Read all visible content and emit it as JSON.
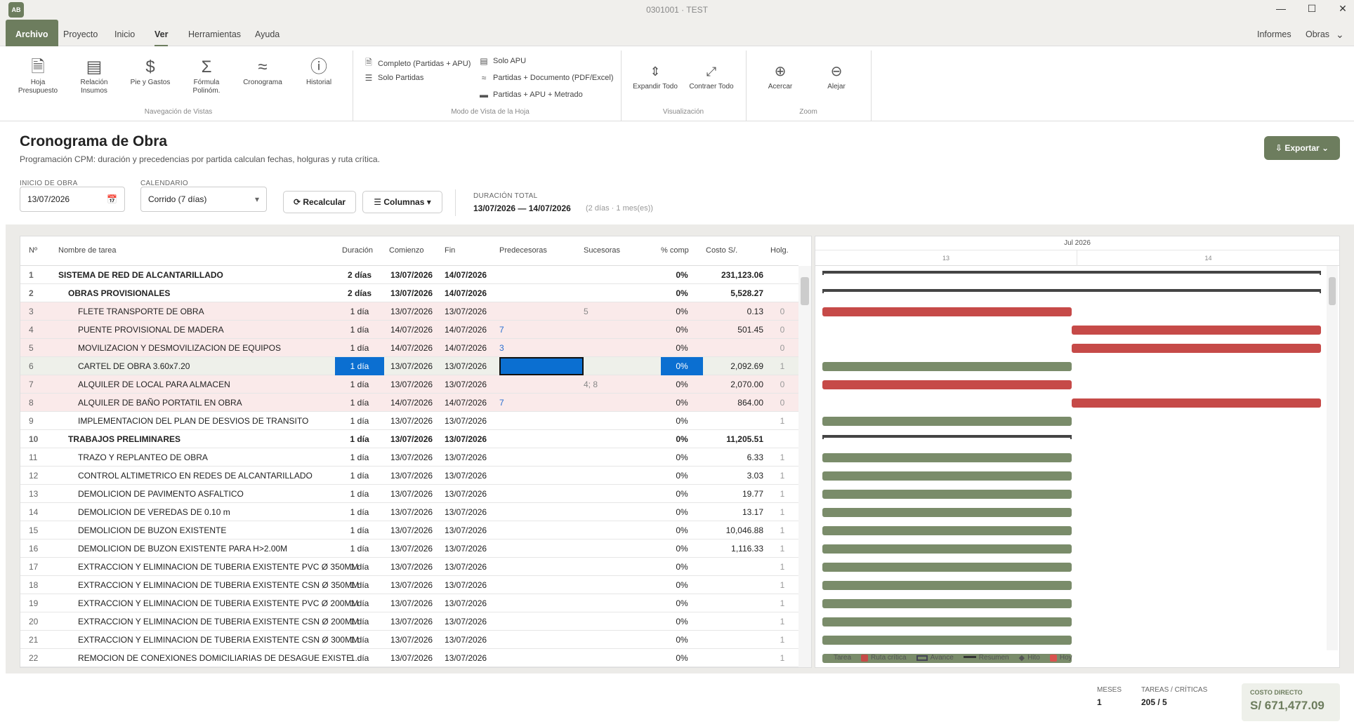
{
  "window": {
    "logo": "AB",
    "title": "0301001 · TEST"
  },
  "menu": {
    "file": "Archivo",
    "items": [
      "Proyecto",
      "Inicio",
      "Ver",
      "Herramientas",
      "Ayuda"
    ],
    "right": [
      "Informes",
      "Obras"
    ]
  },
  "ribbon": {
    "nav": [
      {
        "label": "Hoja Presupuesto",
        "icon": "document-icon"
      },
      {
        "label": "Relación Insumos",
        "icon": "list-doc-icon"
      },
      {
        "label": "Pie y Gastos",
        "icon": "dollar-icon"
      },
      {
        "label": "Fórmula Polinóm.",
        "icon": "sigma-icon"
      },
      {
        "label": "Cronograma",
        "icon": "chart-line-icon"
      },
      {
        "label": "Historial",
        "icon": "info-icon"
      }
    ],
    "nav_group": "Navegación de Vistas",
    "view_modes": [
      "Completo (Partidas + APU)",
      "Solo Partidas",
      "Solo APU",
      "Partidas + Documento (PDF/Excel)",
      "Partidas + APU + Metrado"
    ],
    "view_group": "Modo de Vista de la Hoja",
    "visual": [
      "Expandir Todo",
      "Contraer Todo"
    ],
    "visual_group": "Visualización",
    "zoom": [
      "Acercar",
      "Alejar"
    ],
    "zoom_group": "Zoom"
  },
  "page": {
    "title": "Cronograma de Obra",
    "subtitle": "Programación CPM: duración y precedencias por partida calculan fechas, holguras y ruta crítica.",
    "export": "Exportar",
    "start_label": "INICIO DE OBRA",
    "start_value": "13/07/2026",
    "calendar_label": "CALENDARIO",
    "calendar_value": "Corrido (7 días)",
    "recalc": "Recalcular",
    "columns": "Columnas",
    "duration_label": "DURACIÓN TOTAL",
    "duration_range": "13/07/2026 — 14/07/2026",
    "duration_note": "(2 días · 1 mes(es))"
  },
  "table": {
    "headers": [
      "Nº",
      "Nombre de tarea",
      "Duración",
      "Comienzo",
      "Fin",
      "Predecesoras",
      "Sucesoras",
      "% comp",
      "Costo S/.",
      "Holg."
    ],
    "rows": [
      {
        "n": "1",
        "name": "SISTEMA DE RED DE ALCANTARILLADO",
        "dur": "2 días",
        "start": "13/07/2026",
        "end": "14/07/2026",
        "pred": "",
        "succ": "",
        "pct": "0%",
        "cost": "231,123.06",
        "holg": "",
        "type": "summary",
        "level": 0
      },
      {
        "n": "2",
        "name": "OBRAS PROVISIONALES",
        "dur": "2 días",
        "start": "13/07/2026",
        "end": "14/07/2026",
        "pred": "",
        "succ": "",
        "pct": "0%",
        "cost": "5,528.27",
        "holg": "",
        "type": "summary",
        "level": 1
      },
      {
        "n": "3",
        "name": "FLETE TRANSPORTE DE OBRA",
        "dur": "1 día",
        "start": "13/07/2026",
        "end": "13/07/2026",
        "pred": "",
        "succ": "5",
        "pct": "0%",
        "cost": "0.13",
        "holg": "0",
        "type": "critical",
        "level": 2
      },
      {
        "n": "4",
        "name": "PUENTE PROVISIONAL DE MADERA",
        "dur": "1 día",
        "start": "14/07/2026",
        "end": "14/07/2026",
        "pred": "7",
        "succ": "",
        "pct": "0%",
        "cost": "501.45",
        "holg": "0",
        "type": "critical",
        "level": 2
      },
      {
        "n": "5",
        "name": "MOVILIZACION Y DESMOVILIZACION DE EQUIPOS",
        "dur": "1 día",
        "start": "14/07/2026",
        "end": "14/07/2026",
        "pred": "3",
        "succ": "",
        "pct": "0%",
        "cost": "",
        "holg": "0",
        "type": "critical",
        "level": 2
      },
      {
        "n": "6",
        "name": "CARTEL DE OBRA 3.60x7.20",
        "dur": "1 día",
        "start": "13/07/2026",
        "end": "13/07/2026",
        "pred": "",
        "succ": "",
        "pct": "0%",
        "cost": "2,092.69",
        "holg": "1",
        "type": "selected",
        "level": 2
      },
      {
        "n": "7",
        "name": "ALQUILER DE LOCAL PARA ALMACEN",
        "dur": "1 día",
        "start": "13/07/2026",
        "end": "13/07/2026",
        "pred": "",
        "succ": "4; 8",
        "pct": "0%",
        "cost": "2,070.00",
        "holg": "0",
        "type": "critical",
        "level": 2
      },
      {
        "n": "8",
        "name": "ALQUILER DE BAÑO PORTATIL EN OBRA",
        "dur": "1 día",
        "start": "14/07/2026",
        "end": "14/07/2026",
        "pred": "7",
        "succ": "",
        "pct": "0%",
        "cost": "864.00",
        "holg": "0",
        "type": "critical",
        "level": 2
      },
      {
        "n": "9",
        "name": "IMPLEMENTACION DEL PLAN DE DESVIOS DE TRANSITO",
        "dur": "1 día",
        "start": "13/07/2026",
        "end": "13/07/2026",
        "pred": "",
        "succ": "",
        "pct": "0%",
        "cost": "",
        "holg": "1",
        "type": "task",
        "level": 2
      },
      {
        "n": "10",
        "name": "TRABAJOS PRELIMINARES",
        "dur": "1 día",
        "start": "13/07/2026",
        "end": "13/07/2026",
        "pred": "",
        "succ": "",
        "pct": "0%",
        "cost": "11,205.51",
        "holg": "",
        "type": "summary",
        "level": 1
      },
      {
        "n": "11",
        "name": "TRAZO Y REPLANTEO DE OBRA",
        "dur": "1 día",
        "start": "13/07/2026",
        "end": "13/07/2026",
        "pred": "",
        "succ": "",
        "pct": "0%",
        "cost": "6.33",
        "holg": "1",
        "type": "task",
        "level": 2
      },
      {
        "n": "12",
        "name": "CONTROL ALTIMETRICO EN REDES DE ALCANTARILLADO",
        "dur": "1 día",
        "start": "13/07/2026",
        "end": "13/07/2026",
        "pred": "",
        "succ": "",
        "pct": "0%",
        "cost": "3.03",
        "holg": "1",
        "type": "task",
        "level": 2
      },
      {
        "n": "13",
        "name": "DEMOLICION DE PAVIMENTO ASFALTICO",
        "dur": "1 día",
        "start": "13/07/2026",
        "end": "13/07/2026",
        "pred": "",
        "succ": "",
        "pct": "0%",
        "cost": "19.77",
        "holg": "1",
        "type": "task",
        "level": 2
      },
      {
        "n": "14",
        "name": "DEMOLICION DE VEREDAS DE 0.10 m",
        "dur": "1 día",
        "start": "13/07/2026",
        "end": "13/07/2026",
        "pred": "",
        "succ": "",
        "pct": "0%",
        "cost": "13.17",
        "holg": "1",
        "type": "task",
        "level": 2
      },
      {
        "n": "15",
        "name": "DEMOLICION DE BUZON EXISTENTE",
        "dur": "1 día",
        "start": "13/07/2026",
        "end": "13/07/2026",
        "pred": "",
        "succ": "",
        "pct": "0%",
        "cost": "10,046.88",
        "holg": "1",
        "type": "task",
        "level": 2
      },
      {
        "n": "16",
        "name": "DEMOLICION DE BUZON EXISTENTE PARA H>2.00M",
        "dur": "1 día",
        "start": "13/07/2026",
        "end": "13/07/2026",
        "pred": "",
        "succ": "",
        "pct": "0%",
        "cost": "1,116.33",
        "holg": "1",
        "type": "task",
        "level": 2
      },
      {
        "n": "17",
        "name": "EXTRACCION Y ELIMINACION DE TUBERIA EXISTENTE PVC Ø 350MM",
        "dur": "1 día",
        "start": "13/07/2026",
        "end": "13/07/2026",
        "pred": "",
        "succ": "",
        "pct": "0%",
        "cost": "",
        "holg": "1",
        "type": "task",
        "level": 2
      },
      {
        "n": "18",
        "name": "EXTRACCION Y ELIMINACION DE TUBERIA EXISTENTE CSN Ø 350MM",
        "dur": "1 día",
        "start": "13/07/2026",
        "end": "13/07/2026",
        "pred": "",
        "succ": "",
        "pct": "0%",
        "cost": "",
        "holg": "1",
        "type": "task",
        "level": 2
      },
      {
        "n": "19",
        "name": "EXTRACCION Y ELIMINACION DE TUBERIA EXISTENTE PVC Ø 200MM",
        "dur": "1 día",
        "start": "13/07/2026",
        "end": "13/07/2026",
        "pred": "",
        "succ": "",
        "pct": "0%",
        "cost": "",
        "holg": "1",
        "type": "task",
        "level": 2
      },
      {
        "n": "20",
        "name": "EXTRACCION Y ELIMINACION DE TUBERIA EXISTENTE CSN Ø 200MM",
        "dur": "1 día",
        "start": "13/07/2026",
        "end": "13/07/2026",
        "pred": "",
        "succ": "",
        "pct": "0%",
        "cost": "",
        "holg": "1",
        "type": "task",
        "level": 2
      },
      {
        "n": "21",
        "name": "EXTRACCION Y ELIMINACION DE TUBERIA EXISTENTE CSN Ø 300MM",
        "dur": "1 día",
        "start": "13/07/2026",
        "end": "13/07/2026",
        "pred": "",
        "succ": "",
        "pct": "0%",
        "cost": "",
        "holg": "1",
        "type": "task",
        "level": 2
      },
      {
        "n": "22",
        "name": "REMOCION DE CONEXIONES DOMICILIARIAS DE DESAGUE EXISTE…",
        "dur": "1 día",
        "start": "13/07/2026",
        "end": "13/07/2026",
        "pred": "",
        "succ": "",
        "pct": "0%",
        "cost": "",
        "holg": "1",
        "type": "task",
        "level": 2
      }
    ]
  },
  "gantt": {
    "month": "Jul 2026",
    "days": [
      "13",
      "14"
    ],
    "legend": [
      "Tarea",
      "Ruta crítica",
      "Avance",
      "Resumen",
      "Hito",
      "Hoy"
    ],
    "colors": {
      "task": "#7a8c6a",
      "critical": "#c64a48",
      "summary": "#444444",
      "today": "#d9534f"
    }
  },
  "footer": {
    "months_label": "MESES",
    "months_value": "1",
    "tasks_label": "TAREAS / CRÍTICAS",
    "tasks_value": "205 / 5",
    "cost_label": "COSTO DIRECTO",
    "cost_value": "S/ 671,477.09"
  }
}
